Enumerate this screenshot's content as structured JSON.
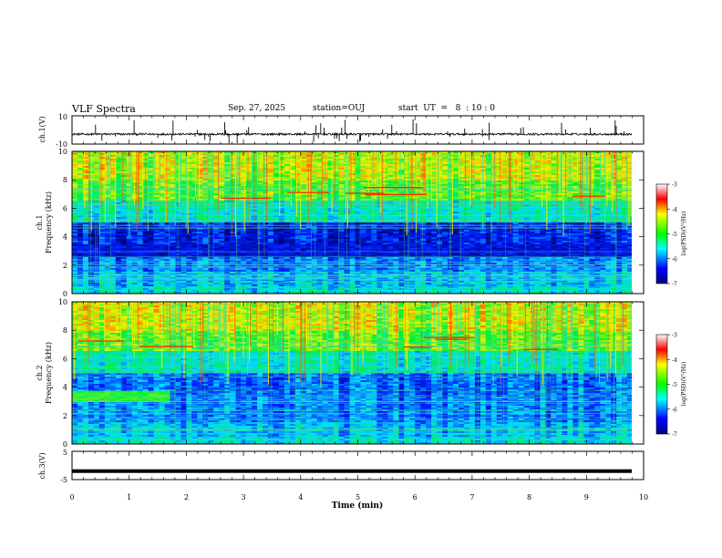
{
  "header": {
    "title": "VLF Spectra",
    "date": "Sep. 27, 2025",
    "station": "station=OUJ",
    "start_ut": "start  UT  =   8  : 10 : 0"
  },
  "chart_data": [
    {
      "type": "line",
      "id": "ch1-waveform",
      "ylabel": "ch.1(V)",
      "ylim": [
        -10,
        10
      ],
      "yticks": [
        "10",
        "-10"
      ],
      "baseline": -3,
      "series": [
        {
          "name": "ch.1",
          "note": "noisy waveform near -3 V with impulsive spikes"
        }
      ]
    },
    {
      "type": "heatmap",
      "id": "ch1-spectrogram",
      "ylabel": "ch.1\nFrequency (kHz)",
      "ylabel_top": "ch.1",
      "ylabel_bottom": "Frequency (kHz)",
      "ylim": [
        0,
        10
      ],
      "yticks": [
        "0",
        "2",
        "4",
        "6",
        "8",
        "10"
      ],
      "xlim": [
        0,
        10
      ],
      "colorbar": {
        "label": "log(PSD)(V²/Hz)",
        "range": [
          -7,
          -3
        ],
        "ticks": [
          "-3",
          "-4",
          "-5",
          "-6",
          "-7"
        ]
      }
    },
    {
      "type": "heatmap",
      "id": "ch2-spectrogram",
      "ylabel": "ch.2\nFrequency (kHz)",
      "ylabel_top": "ch.2",
      "ylabel_bottom": "Frequency (kHz)",
      "ylim": [
        0,
        10
      ],
      "yticks": [
        "0",
        "2",
        "4",
        "6",
        "8",
        "10"
      ],
      "xlim": [
        0,
        10
      ],
      "colorbar": {
        "label": "log(PSD)(V²/Hz)",
        "range": [
          -7,
          -3
        ],
        "ticks": [
          "-3",
          "-4",
          "-5",
          "-6",
          "-7"
        ]
      }
    },
    {
      "type": "line",
      "id": "ch3-waveform",
      "ylabel": "ch.3(V)",
      "ylim": [
        -5,
        5
      ],
      "yticks": [
        "5",
        "-5"
      ],
      "series": [
        {
          "name": "ch.3",
          "value": -2
        }
      ]
    }
  ],
  "x_axis": {
    "label": "Time  (min)",
    "range": [
      0,
      10
    ],
    "ticks": [
      "0",
      "1",
      "2",
      "3",
      "4",
      "5",
      "6",
      "7",
      "8",
      "9",
      "10"
    ]
  }
}
